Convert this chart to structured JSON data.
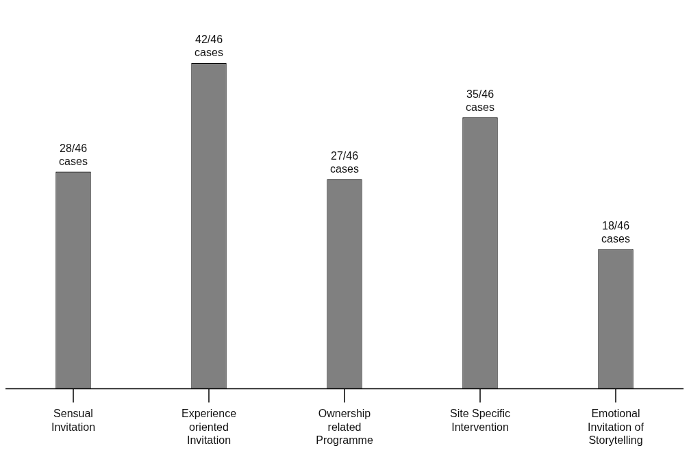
{
  "chart_data": {
    "type": "bar",
    "categories": [
      "Sensual Invitation",
      "Experience oriented Invitation",
      "Ownership related Programme",
      "Site Specific Intervention",
      "Emotional Invitation of Storytelling"
    ],
    "values": [
      28,
      42,
      27,
      35,
      18
    ],
    "value_labels": [
      "28/46 cases",
      "42/46 cases",
      "27/46 cases",
      "35/46 cases",
      "18/46 cases"
    ],
    "color": "#808080",
    "grid": false,
    "legend": false
  }
}
